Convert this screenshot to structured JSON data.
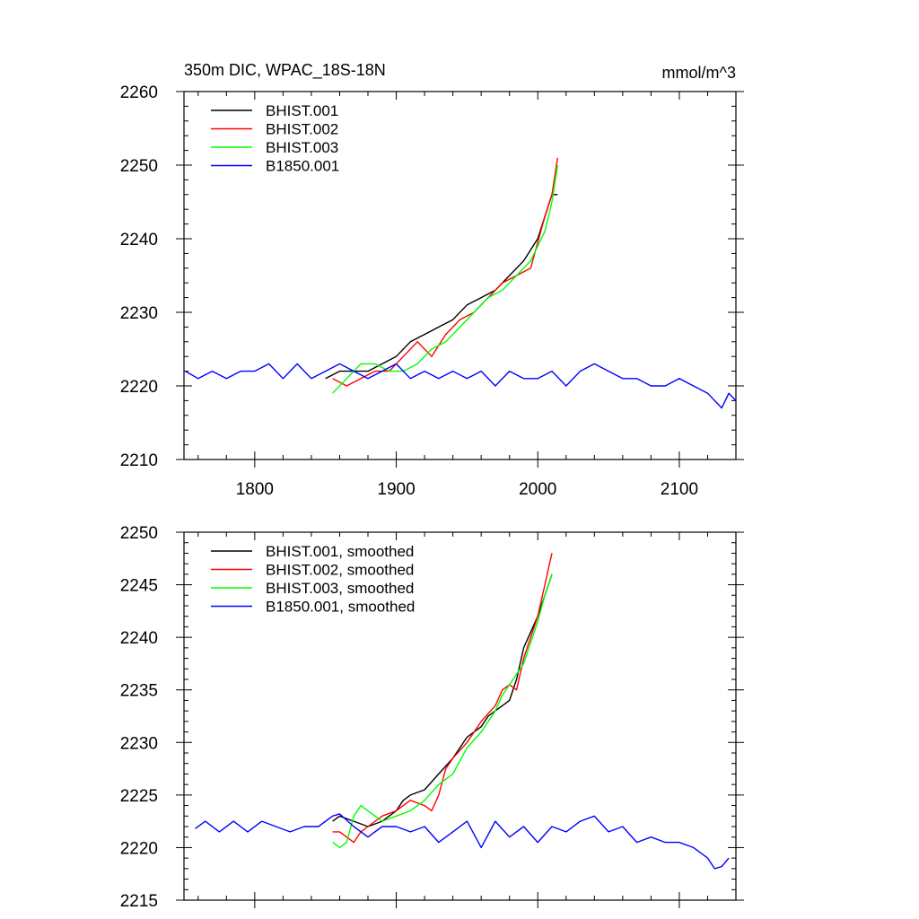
{
  "header": {
    "title": "350m DIC, WPAC_18S-18N",
    "units": "mmol/m^3"
  },
  "chart_data": [
    {
      "type": "line",
      "title": "350m DIC, WPAC_18S-18N",
      "units": "mmol/m^3",
      "xlim": [
        1750,
        2140
      ],
      "ylim": [
        2210,
        2260
      ],
      "xticks": [
        1800,
        1900,
        2000,
        2100
      ],
      "xtick_labels": [
        "1800",
        "1900",
        "2000",
        "2100"
      ],
      "yticks": [
        2210,
        2220,
        2230,
        2240,
        2250,
        2260
      ],
      "ytick_labels": [
        "2210",
        "2220",
        "2230",
        "2240",
        "2250",
        "2260"
      ],
      "grid": false,
      "legend": "top-left",
      "series": [
        {
          "name": "BHIST.001",
          "color": "#000000",
          "x": [
            1850,
            1860,
            1870,
            1880,
            1890,
            1900,
            1910,
            1920,
            1930,
            1940,
            1950,
            1960,
            1970,
            1980,
            1990,
            2000,
            2005,
            2010,
            2014
          ],
          "y": [
            2221,
            2222,
            2222,
            2222,
            2223,
            2224,
            2226,
            2227,
            2228,
            2229,
            2231,
            2232,
            2233,
            2235,
            2237,
            2240,
            2243,
            2246,
            2246
          ]
        },
        {
          "name": "BHIST.002",
          "color": "#ff0000",
          "x": [
            1855,
            1865,
            1875,
            1885,
            1895,
            1905,
            1915,
            1925,
            1935,
            1945,
            1955,
            1965,
            1975,
            1985,
            1995,
            2005,
            2010,
            2014
          ],
          "y": [
            2221,
            2220,
            2221,
            2222,
            2222,
            2224,
            2226,
            2224,
            2227,
            2229,
            2230,
            2232,
            2234,
            2235,
            2236,
            2243,
            2246,
            2251
          ]
        },
        {
          "name": "BHIST.003",
          "color": "#00ff00",
          "x": [
            1855,
            1865,
            1875,
            1885,
            1895,
            1905,
            1915,
            1925,
            1935,
            1945,
            1955,
            1965,
            1975,
            1985,
            1995,
            2005,
            2010,
            2014
          ],
          "y": [
            2219,
            2221,
            2223,
            2223,
            2222,
            2222,
            2223,
            2225,
            2226,
            2228,
            2230,
            2232,
            2233,
            2235,
            2237,
            2241,
            2245,
            2250
          ]
        },
        {
          "name": "B1850.001",
          "color": "#0000ff",
          "x": [
            1751,
            1760,
            1770,
            1780,
            1790,
            1800,
            1810,
            1820,
            1830,
            1840,
            1850,
            1860,
            1870,
            1880,
            1890,
            1900,
            1910,
            1920,
            1930,
            1940,
            1950,
            1960,
            1970,
            1980,
            1990,
            2000,
            2010,
            2020,
            2030,
            2040,
            2050,
            2060,
            2070,
            2080,
            2090,
            2100,
            2110,
            2120,
            2130,
            2135,
            2140
          ],
          "y": [
            2222,
            2221,
            2222,
            2221,
            2222,
            2222,
            2223,
            2221,
            2223,
            2221,
            2222,
            2223,
            2222,
            2221,
            2222,
            2223,
            2221,
            2222,
            2221,
            2222,
            2221,
            2222,
            2220,
            2222,
            2221,
            2221,
            2222,
            2220,
            2222,
            2223,
            2222,
            2221,
            2221,
            2220,
            2220,
            2221,
            2220,
            2219,
            2217,
            2219,
            2218
          ]
        }
      ]
    },
    {
      "type": "line",
      "xlim": [
        1750,
        2140
      ],
      "ylim": [
        2215,
        2250
      ],
      "xticks": [
        1800,
        1900,
        2000,
        2100
      ],
      "yticks": [
        2215,
        2220,
        2225,
        2230,
        2235,
        2240,
        2245,
        2250
      ],
      "ytick_labels": [
        "2215",
        "2220",
        "2225",
        "2230",
        "2235",
        "2240",
        "2245",
        "2250"
      ],
      "grid": false,
      "legend": "top-left",
      "series": [
        {
          "name": "BHIST.001, smoothed",
          "color": "#000000",
          "x": [
            1855,
            1860,
            1870,
            1880,
            1890,
            1900,
            1905,
            1910,
            1920,
            1930,
            1940,
            1945,
            1950,
            1960,
            1965,
            1970,
            1975,
            1980,
            1985,
            1990,
            1995,
            2000,
            2005,
            2010
          ],
          "y": [
            2222.5,
            2223,
            2222.5,
            2222,
            2222.5,
            2223.5,
            2224.5,
            2225,
            2225.5,
            2227,
            2228.5,
            2229.5,
            2230.5,
            2231.5,
            2232.5,
            2233,
            2233.5,
            2234,
            2236,
            2239,
            2240.5,
            2242,
            2244,
            2246
          ]
        },
        {
          "name": "BHIST.002, smoothed",
          "color": "#ff0000",
          "x": [
            1855,
            1860,
            1865,
            1870,
            1875,
            1880,
            1890,
            1900,
            1910,
            1920,
            1925,
            1930,
            1935,
            1940,
            1950,
            1960,
            1970,
            1975,
            1980,
            1985,
            1990,
            1995,
            2000,
            2005,
            2010
          ],
          "y": [
            2221.5,
            2221.5,
            2221,
            2220.5,
            2221.5,
            2222,
            2223,
            2223.5,
            2224.5,
            2224,
            2223.5,
            2225,
            2227.5,
            2228.5,
            2230,
            2232,
            2233.5,
            2235,
            2235.5,
            2235,
            2238,
            2240,
            2242,
            2245,
            2248
          ]
        },
        {
          "name": "BHIST.003, smoothed",
          "color": "#00ff00",
          "x": [
            1855,
            1860,
            1865,
            1870,
            1875,
            1880,
            1890,
            1900,
            1910,
            1920,
            1930,
            1935,
            1940,
            1950,
            1960,
            1970,
            1975,
            1980,
            1985,
            1990,
            1995,
            2000,
            2005,
            2010
          ],
          "y": [
            2220.5,
            2220,
            2220.5,
            2223,
            2224,
            2223.5,
            2222.5,
            2223,
            2223.5,
            2224.5,
            2226,
            2226.5,
            2227,
            2229.5,
            2231,
            2233,
            2234.5,
            2235.5,
            2236.5,
            2237.5,
            2239.5,
            2241.5,
            2244,
            2246
          ]
        },
        {
          "name": "B1850.001, smoothed",
          "color": "#0000ff",
          "x": [
            1758,
            1765,
            1775,
            1785,
            1795,
            1805,
            1815,
            1825,
            1835,
            1845,
            1855,
            1860,
            1870,
            1880,
            1890,
            1900,
            1910,
            1920,
            1930,
            1940,
            1950,
            1960,
            1970,
            1980,
            1990,
            2000,
            2010,
            2020,
            2030,
            2040,
            2050,
            2060,
            2070,
            2080,
            2090,
            2100,
            2110,
            2120,
            2125,
            2130,
            2135
          ],
          "y": [
            2221.8,
            2222.5,
            2221.5,
            2222.5,
            2221.5,
            2222.5,
            2222,
            2221.5,
            2222,
            2222,
            2223,
            2223.2,
            2222,
            2221,
            2222,
            2222,
            2221.5,
            2222,
            2220.5,
            2221.5,
            2222.5,
            2220,
            2222.5,
            2221,
            2222,
            2220.5,
            2222,
            2221.5,
            2222.5,
            2223,
            2221.5,
            2222,
            2220.5,
            2221,
            2220.5,
            2220.5,
            2220,
            2219,
            2218,
            2218.2,
            2219
          ]
        }
      ]
    }
  ]
}
